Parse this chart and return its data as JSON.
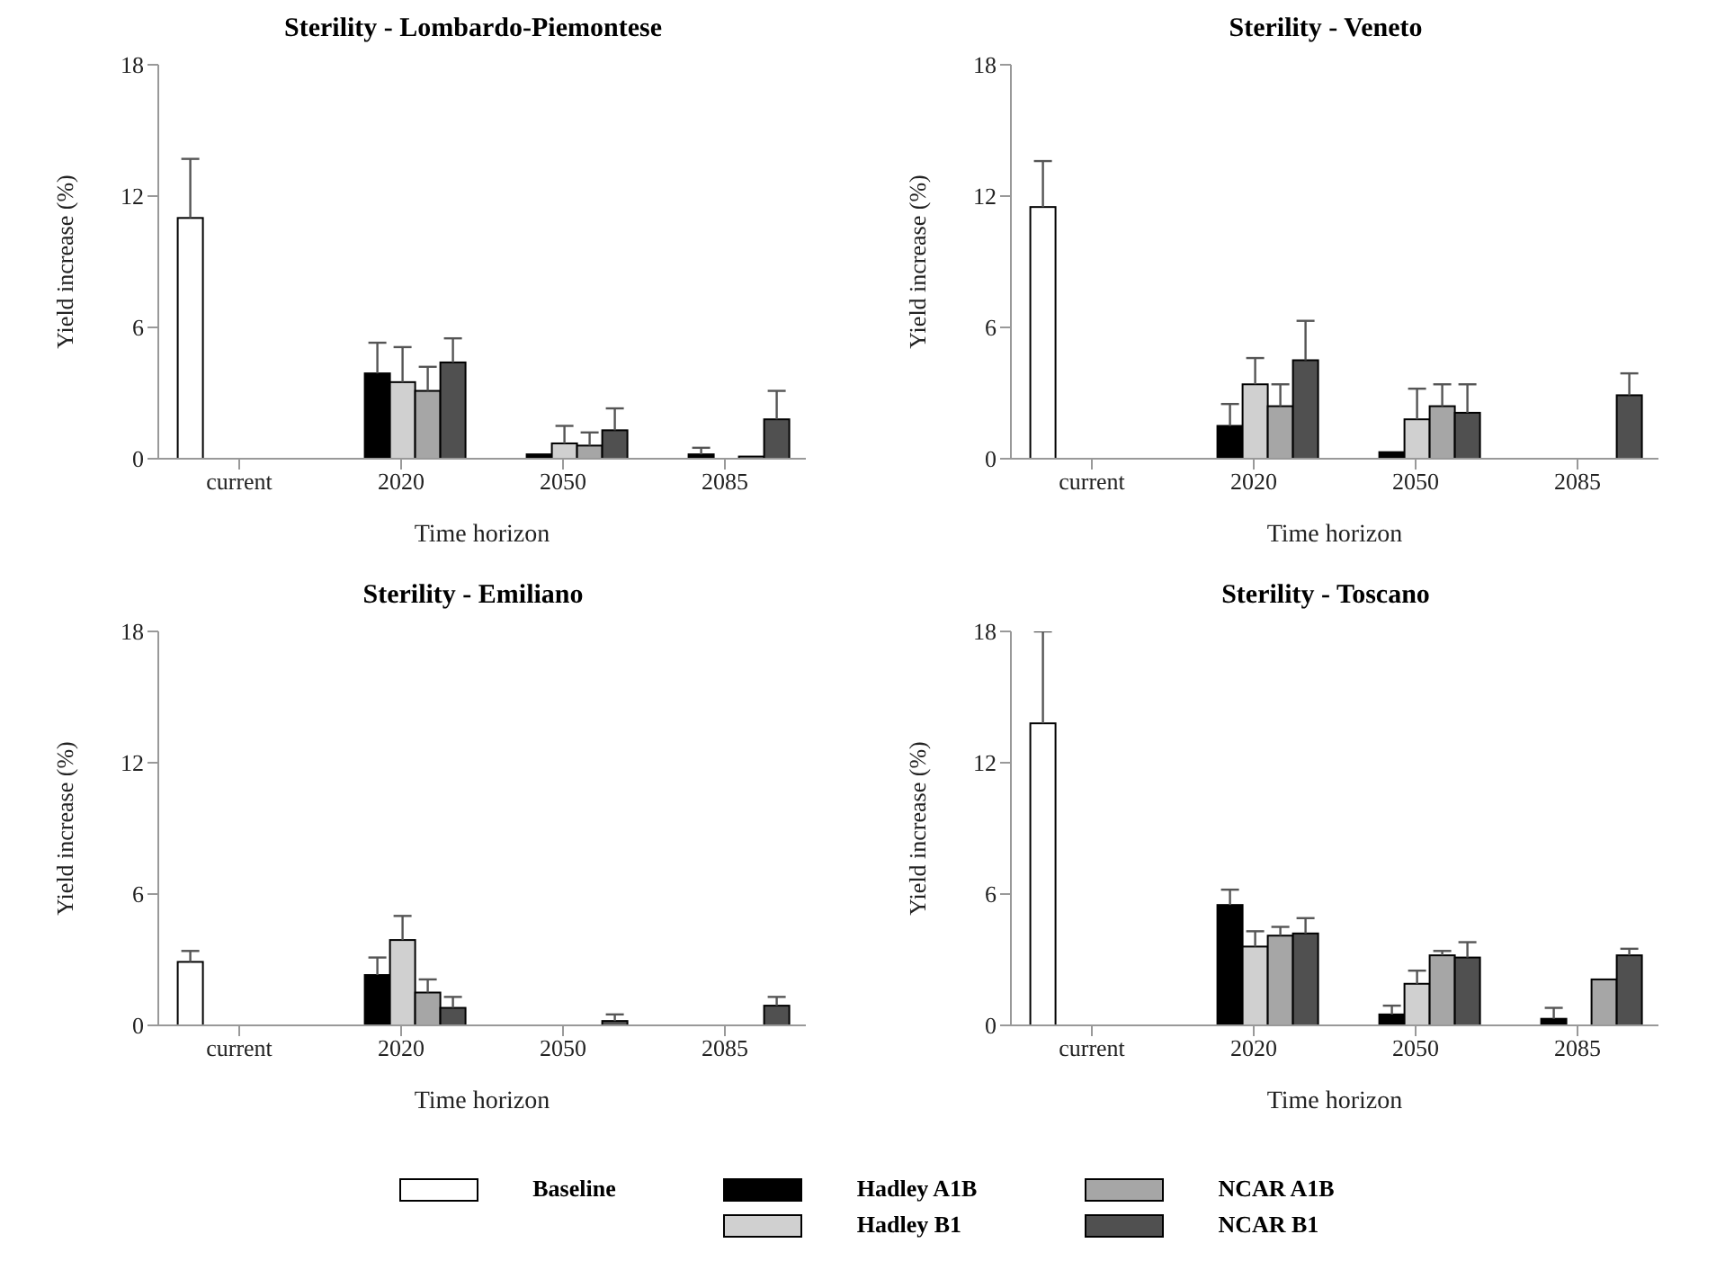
{
  "chart_data": [
    {
      "type": "bar",
      "title": "Sterility - Lombardo-Piemontese",
      "xlabel": "Time horizon",
      "ylabel": "Yield increase (%)",
      "categories": [
        "current",
        "2020",
        "2050",
        "2085"
      ],
      "ylim": [
        0,
        18
      ],
      "yticks": [
        0,
        6,
        12,
        18
      ],
      "grid": false,
      "legend": "bottom",
      "series": [
        {
          "name": "Baseline",
          "color": "#ffffff",
          "values": [
            11.0,
            null,
            null,
            null
          ],
          "errors": [
            [
              11.0,
              13.7
            ],
            null,
            null,
            null
          ]
        },
        {
          "name": "Hadley A1B",
          "color": "#000000",
          "values": [
            null,
            3.9,
            0.2,
            0.2
          ],
          "errors": [
            null,
            [
              3.9,
              5.3
            ],
            null,
            [
              0.2,
              0.5
            ]
          ]
        },
        {
          "name": "Hadley B1",
          "color": "#d0d0d0",
          "values": [
            null,
            3.5,
            0.7,
            0
          ],
          "errors": [
            null,
            [
              3.5,
              5.1
            ],
            [
              0.7,
              1.5
            ],
            null
          ]
        },
        {
          "name": "NCAR A1B",
          "color": "#a6a6a6",
          "values": [
            null,
            3.1,
            0.6,
            0.1
          ],
          "errors": [
            null,
            [
              3.1,
              4.2
            ],
            [
              0.6,
              1.2
            ],
            null
          ]
        },
        {
          "name": "NCAR B1",
          "color": "#505050",
          "values": [
            null,
            4.4,
            1.3,
            1.8
          ],
          "errors": [
            null,
            [
              4.4,
              5.5
            ],
            [
              1.3,
              2.3
            ],
            [
              1.8,
              3.1
            ]
          ]
        }
      ]
    },
    {
      "type": "bar",
      "title": "Sterility - Veneto",
      "xlabel": "Time horizon",
      "ylabel": "Yield increase (%)",
      "categories": [
        "current",
        "2020",
        "2050",
        "2085"
      ],
      "ylim": [
        0,
        18
      ],
      "yticks": [
        0,
        6,
        12,
        18
      ],
      "grid": false,
      "legend": "bottom",
      "series": [
        {
          "name": "Baseline",
          "color": "#ffffff",
          "values": [
            11.5,
            null,
            null,
            null
          ],
          "errors": [
            [
              11.5,
              13.6
            ],
            null,
            null,
            null
          ]
        },
        {
          "name": "Hadley A1B",
          "color": "#000000",
          "values": [
            null,
            1.5,
            0.3,
            null
          ],
          "errors": [
            null,
            [
              1.5,
              2.5
            ],
            null,
            null
          ]
        },
        {
          "name": "Hadley B1",
          "color": "#d0d0d0",
          "values": [
            null,
            3.4,
            1.8,
            null
          ],
          "errors": [
            null,
            [
              3.4,
              4.6
            ],
            [
              1.8,
              3.2
            ],
            null
          ]
        },
        {
          "name": "NCAR A1B",
          "color": "#a6a6a6",
          "values": [
            null,
            2.4,
            2.4,
            null
          ],
          "errors": [
            null,
            [
              2.4,
              3.4
            ],
            [
              2.4,
              3.4
            ],
            null
          ]
        },
        {
          "name": "NCAR B1",
          "color": "#505050",
          "values": [
            null,
            4.5,
            2.1,
            2.9
          ],
          "errors": [
            null,
            [
              4.5,
              6.3
            ],
            [
              2.1,
              3.4
            ],
            [
              2.9,
              3.9
            ]
          ]
        }
      ]
    },
    {
      "type": "bar",
      "title": "Sterility - Emiliano",
      "xlabel": "Time horizon",
      "ylabel": "Yield increase (%)",
      "categories": [
        "current",
        "2020",
        "2050",
        "2085"
      ],
      "ylim": [
        0,
        18
      ],
      "yticks": [
        0,
        6,
        12,
        18
      ],
      "grid": false,
      "legend": "bottom",
      "series": [
        {
          "name": "Baseline",
          "color": "#ffffff",
          "values": [
            2.9,
            null,
            null,
            null
          ],
          "errors": [
            [
              2.9,
              3.4
            ],
            null,
            null,
            null
          ]
        },
        {
          "name": "Hadley A1B",
          "color": "#000000",
          "values": [
            null,
            2.3,
            null,
            null
          ],
          "errors": [
            null,
            [
              2.3,
              3.1
            ],
            null,
            null
          ]
        },
        {
          "name": "Hadley B1",
          "color": "#d0d0d0",
          "values": [
            null,
            3.9,
            null,
            null
          ],
          "errors": [
            null,
            [
              3.9,
              5.0
            ],
            null,
            null
          ]
        },
        {
          "name": "NCAR A1B",
          "color": "#a6a6a6",
          "values": [
            null,
            1.5,
            null,
            null
          ],
          "errors": [
            null,
            [
              1.5,
              2.1
            ],
            null,
            null
          ]
        },
        {
          "name": "NCAR B1",
          "color": "#505050",
          "values": [
            null,
            0.8,
            0.2,
            0.9
          ],
          "errors": [
            null,
            [
              0.8,
              1.3
            ],
            [
              0.2,
              0.5
            ],
            [
              0.9,
              1.3
            ]
          ]
        }
      ]
    },
    {
      "type": "bar",
      "title": "Sterility - Toscano",
      "xlabel": "Time horizon",
      "ylabel": "Yield increase (%)",
      "categories": [
        "current",
        "2020",
        "2050",
        "2085"
      ],
      "ylim": [
        0,
        18
      ],
      "yticks": [
        0,
        6,
        12,
        18
      ],
      "grid": false,
      "legend": "bottom",
      "series": [
        {
          "name": "Baseline",
          "color": "#ffffff",
          "values": [
            13.8,
            null,
            null,
            null
          ],
          "errors": [
            [
              13.8,
              18.0
            ],
            null,
            null,
            null
          ]
        },
        {
          "name": "Hadley A1B",
          "color": "#000000",
          "values": [
            null,
            5.5,
            0.5,
            0.3
          ],
          "errors": [
            null,
            [
              5.5,
              6.2
            ],
            [
              0.5,
              0.9
            ],
            [
              0.3,
              0.8
            ]
          ]
        },
        {
          "name": "Hadley B1",
          "color": "#d0d0d0",
          "values": [
            null,
            3.6,
            1.9,
            null
          ],
          "errors": [
            null,
            [
              3.6,
              4.3
            ],
            [
              1.9,
              2.5
            ],
            null
          ]
        },
        {
          "name": "NCAR A1B",
          "color": "#a6a6a6",
          "values": [
            null,
            4.1,
            3.2,
            2.1
          ],
          "errors": [
            null,
            [
              4.1,
              4.5
            ],
            [
              3.2,
              3.4
            ],
            null
          ]
        },
        {
          "name": "NCAR B1",
          "color": "#505050",
          "values": [
            null,
            4.2,
            3.1,
            3.2
          ],
          "errors": [
            null,
            [
              4.2,
              4.9
            ],
            [
              3.1,
              3.8
            ],
            [
              3.2,
              3.5
            ]
          ]
        }
      ]
    }
  ]
}
